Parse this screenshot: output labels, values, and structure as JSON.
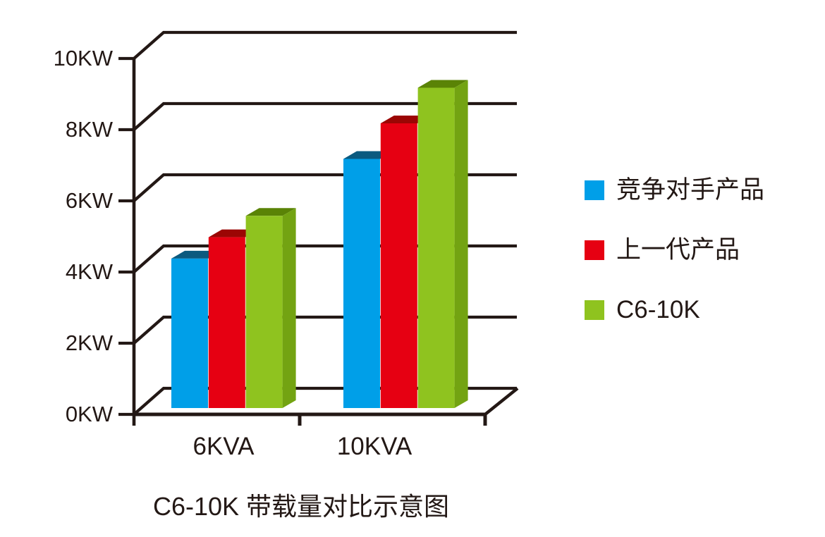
{
  "chart_data": {
    "type": "bar",
    "projection": "3d",
    "title": "C6-10K 带载量对比示意图",
    "categories": [
      "6KVA",
      "10KVA"
    ],
    "series": [
      {
        "name": "竞争对手产品",
        "values": [
          4.2,
          7.0
        ],
        "color": "#009FE8",
        "top_color": "#0B5A7F"
      },
      {
        "name": "上一代产品",
        "values": [
          4.8,
          8.0
        ],
        "color": "#E60012",
        "top_color": "#9B0604"
      },
      {
        "name": "C6-10K",
        "values": [
          5.4,
          9.0
        ],
        "color": "#8FC31F",
        "top_color": "#5A8306",
        "side_color": "#73A312"
      }
    ],
    "y_ticks": [
      {
        "label": "0KW",
        "value": 0
      },
      {
        "label": "2KW",
        "value": 2
      },
      {
        "label": "4KW",
        "value": 4
      },
      {
        "label": "6KW",
        "value": 6
      },
      {
        "label": "8KW",
        "value": 8
      },
      {
        "label": "10KW",
        "value": 10
      }
    ],
    "ylim": [
      0,
      10
    ],
    "xlabel": "",
    "ylabel": "",
    "grid": true,
    "legend_position": "right",
    "axis_color": "#231815",
    "background_color": "#FFFFFF"
  }
}
